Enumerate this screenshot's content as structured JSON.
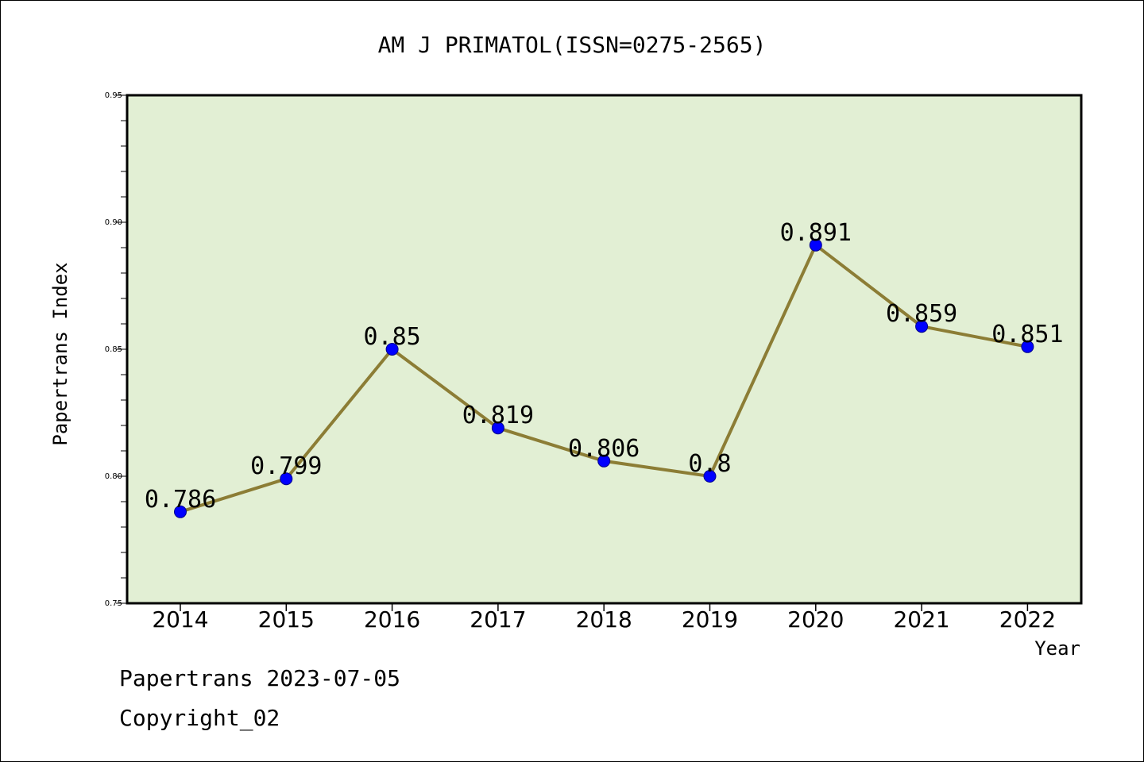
{
  "chart_data": {
    "type": "line",
    "title": "AM J PRIMATOL(ISSN=0275-2565)",
    "xlabel": "Year",
    "ylabel": "Papertrans Index",
    "categories": [
      "2014",
      "2015",
      "2016",
      "2017",
      "2018",
      "2019",
      "2020",
      "2021",
      "2022"
    ],
    "values": [
      0.786,
      0.799,
      0.85,
      0.819,
      0.806,
      0.8,
      0.891,
      0.859,
      0.851
    ],
    "data_labels": [
      "0.786",
      "0.799",
      "0.85",
      "0.819",
      "0.806",
      "0.8",
      "0.891",
      "0.859",
      "0.851"
    ],
    "ylim": [
      0.75,
      0.95
    ],
    "yticks": [
      0.75,
      0.8,
      0.85,
      0.9,
      0.95
    ],
    "ytick_labels": [
      "0.75",
      "0.80",
      "0.85",
      "0.90",
      "0.95"
    ],
    "grid": false,
    "legend": "none",
    "colors": {
      "plot_background": "#e2efd4",
      "line": "#8c7d35",
      "marker": "#0000ff"
    }
  },
  "footer": {
    "line1": "Papertrans 2023-07-05",
    "line2": "Copyright_02"
  }
}
